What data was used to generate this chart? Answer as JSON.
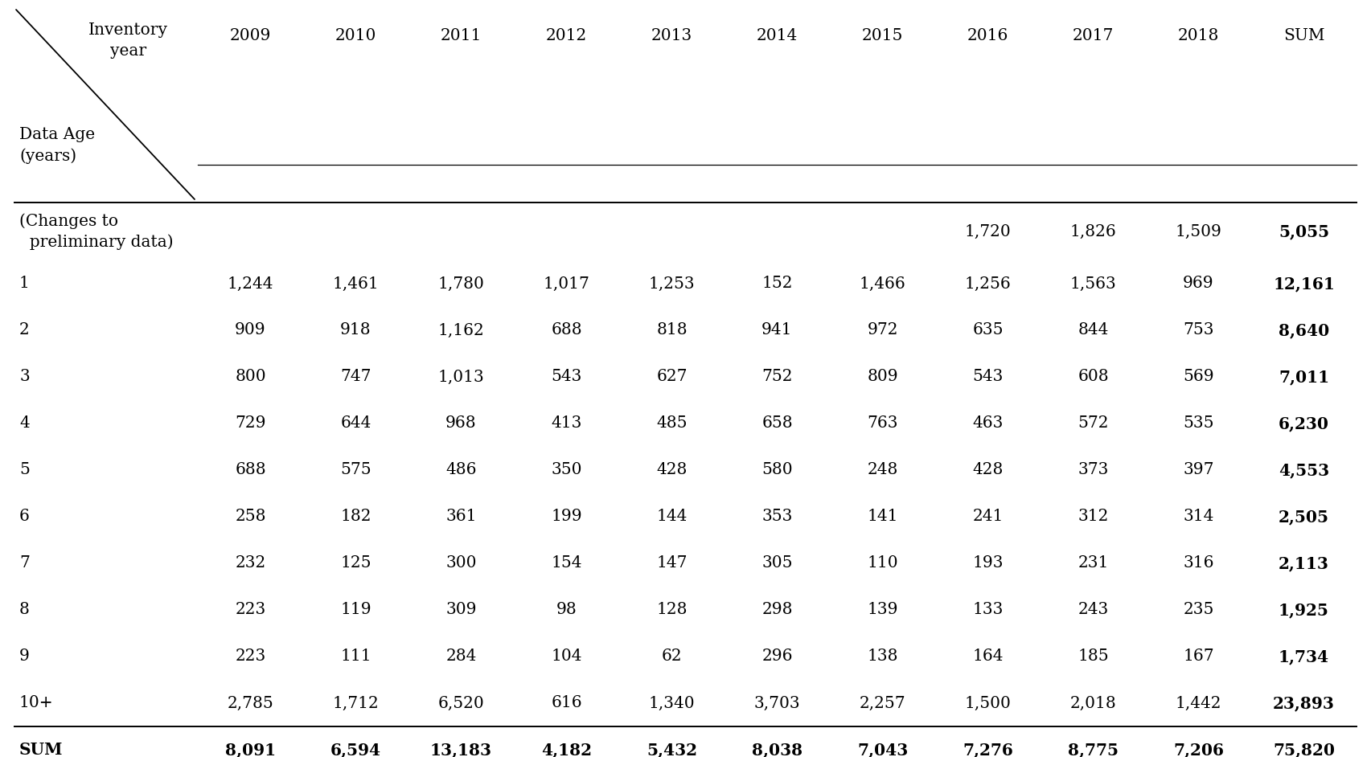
{
  "col_headers": [
    "2009",
    "2010",
    "2011",
    "2012",
    "2013",
    "2014",
    "2015",
    "2016",
    "2017",
    "2018",
    "SUM"
  ],
  "row_labels": [
    "(Changes to\n  preliminary data)",
    "1",
    "2",
    "3",
    "4",
    "5",
    "6",
    "7",
    "8",
    "9",
    "10+",
    "SUM"
  ],
  "table_data": [
    [
      "",
      "",
      "",
      "",
      "",
      "",
      "",
      "1,720",
      "1,826",
      "1,509",
      "5,055"
    ],
    [
      "1,244",
      "1,461",
      "1,780",
      "1,017",
      "1,253",
      "152",
      "1,466",
      "1,256",
      "1,563",
      "969",
      "12,161"
    ],
    [
      "909",
      "918",
      "1,162",
      "688",
      "818",
      "941",
      "972",
      "635",
      "844",
      "753",
      "8,640"
    ],
    [
      "800",
      "747",
      "1,013",
      "543",
      "627",
      "752",
      "809",
      "543",
      "608",
      "569",
      "7,011"
    ],
    [
      "729",
      "644",
      "968",
      "413",
      "485",
      "658",
      "763",
      "463",
      "572",
      "535",
      "6,230"
    ],
    [
      "688",
      "575",
      "486",
      "350",
      "428",
      "580",
      "248",
      "428",
      "373",
      "397",
      "4,553"
    ],
    [
      "258",
      "182",
      "361",
      "199",
      "144",
      "353",
      "141",
      "241",
      "312",
      "314",
      "2,505"
    ],
    [
      "232",
      "125",
      "300",
      "154",
      "147",
      "305",
      "110",
      "193",
      "231",
      "316",
      "2,113"
    ],
    [
      "223",
      "119",
      "309",
      "98",
      "128",
      "298",
      "139",
      "133",
      "243",
      "235",
      "1,925"
    ],
    [
      "223",
      "111",
      "284",
      "104",
      "62",
      "296",
      "138",
      "164",
      "185",
      "167",
      "1,734"
    ],
    [
      "2,785",
      "1,712",
      "6,520",
      "616",
      "1,340",
      "3,703",
      "2,257",
      "1,500",
      "2,018",
      "1,442",
      "23,893"
    ],
    [
      "8,091",
      "6,594",
      "13,183",
      "4,182",
      "5,432",
      "8,038",
      "7,043",
      "7,276",
      "8,775",
      "7,206",
      "75,820"
    ]
  ],
  "header_top_label_1": "Inventory",
  "header_top_label_2": "year",
  "row_header_label_1": "Data Age",
  "row_header_label_2": "(years)",
  "background_color": "#ffffff",
  "font_size": 14.5,
  "header_font_size": 14.5,
  "fig_width": 17.05,
  "fig_height": 9.42,
  "dpi": 100
}
